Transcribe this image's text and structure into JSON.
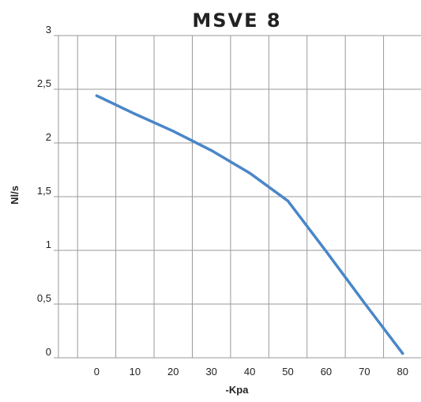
{
  "chart_data": {
    "type": "line",
    "title": "MSVE 8",
    "xlabel": "-Kpa",
    "ylabel": "Nl/s",
    "xlim": [
      -10,
      85
    ],
    "ylim": [
      0,
      3
    ],
    "x_ticks": [
      0,
      10,
      20,
      30,
      40,
      50,
      60,
      70,
      80
    ],
    "x_tick_labels": [
      "0",
      "10",
      "20",
      "30",
      "40",
      "50",
      "60",
      "70",
      "80"
    ],
    "y_ticks": [
      0,
      0.5,
      1,
      1.5,
      2,
      2.5,
      3
    ],
    "y_tick_labels": [
      "0",
      "0,5",
      "1",
      "1,5",
      "2",
      "2,5",
      "3"
    ],
    "grid": true,
    "series": [
      {
        "color": "#4a86c8",
        "x": [
          0,
          10,
          20,
          30,
          40,
          50,
          60,
          70,
          80
        ],
        "y": [
          2.44,
          2.27,
          2.11,
          1.93,
          1.72,
          1.46,
          0.99,
          0.51,
          0.04
        ]
      }
    ]
  }
}
